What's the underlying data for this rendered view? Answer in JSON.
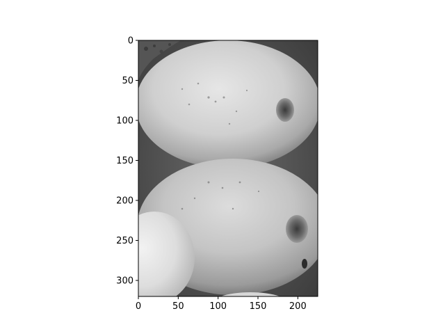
{
  "image": {
    "description_name": "grayscale-photo",
    "colormap": "gray"
  },
  "axes": {
    "x": {
      "range": [
        0,
        225
      ],
      "ticks": [
        0,
        50,
        100,
        150,
        200
      ],
      "tick_labels": [
        "0",
        "50",
        "100",
        "150",
        "200"
      ]
    },
    "y": {
      "range": [
        0,
        320
      ],
      "inverted": true,
      "ticks": [
        0,
        50,
        100,
        150,
        200,
        250,
        300
      ],
      "tick_labels": [
        "0",
        "50",
        "100",
        "150",
        "200",
        "250",
        "300"
      ]
    }
  },
  "colors": {
    "background": "#ffffff",
    "axis": "#000000"
  }
}
